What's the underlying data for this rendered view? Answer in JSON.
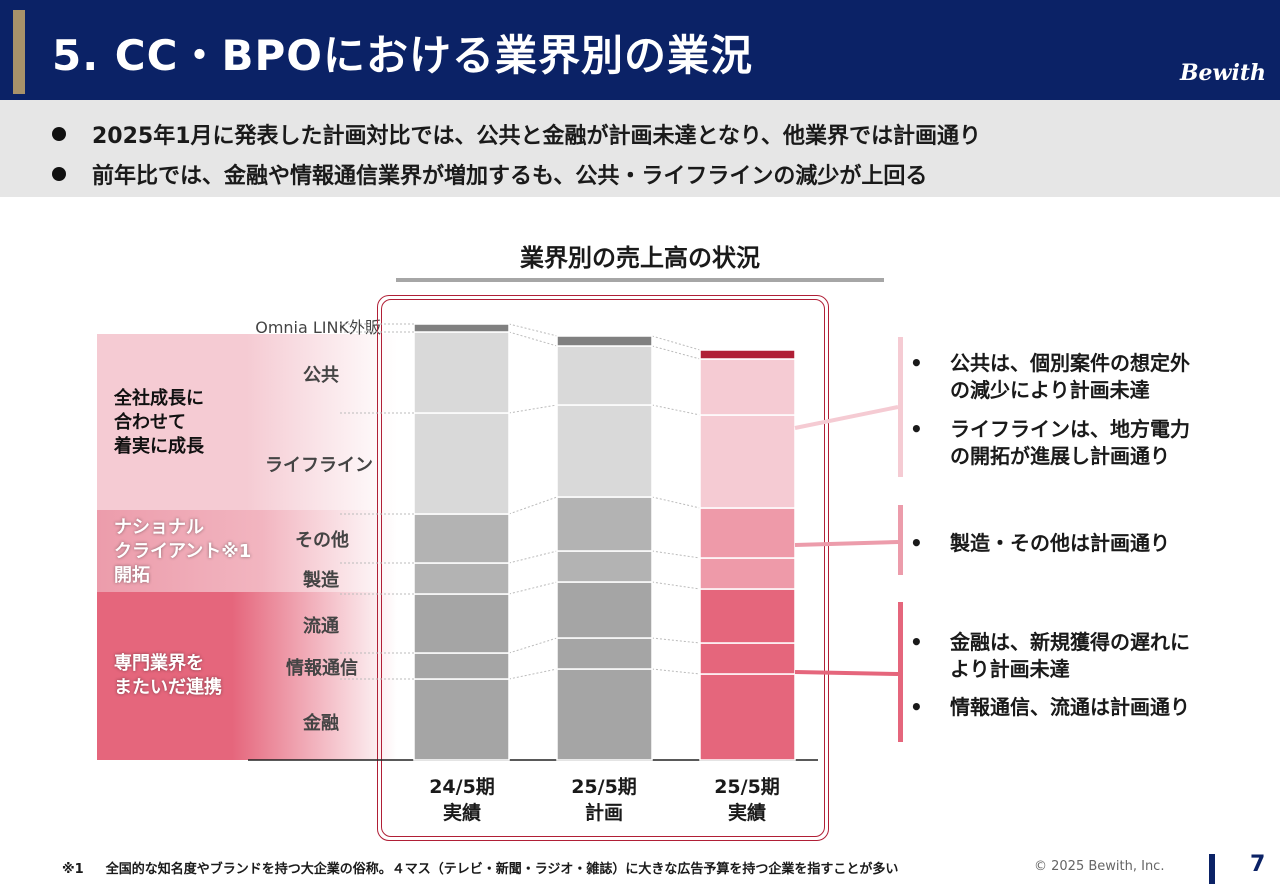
{
  "header": {
    "title": "5. CC・BPOにおける業界別の業況",
    "logo": "Bewith"
  },
  "summary": {
    "bullets": [
      "2025年1月に発表した計画対比では、公共と金融が計画未達となり、他業界では計画通り",
      "前年比では、金融や情報通信業界が増加するも、公共・ライフラインの減少が上回る"
    ]
  },
  "groups": [
    {
      "label": "全社成長に\n合わせて\n着実に成長"
    },
    {
      "label": "ナショナル\nクライアント※1\n開拓"
    },
    {
      "label": "専門業界を\nまたいだ連携"
    }
  ],
  "notes": [
    {
      "bullet": "•",
      "text": "公共は、個別案件の想定外\nの減少により計画未達"
    },
    {
      "bullet": "•",
      "text": "ライフラインは、地方電力\nの開拓が進展し計画通り"
    },
    {
      "bullet": "•",
      "text": "製造・その他は計画通り"
    },
    {
      "bullet": "•",
      "text": "金融は、新規獲得の遅れに\nより計画未達"
    },
    {
      "bullet": "•",
      "text": "情報通信、流通は計画通り"
    }
  ],
  "colors": {
    "header_bg": "#0b2266",
    "accent": "#b01f36",
    "grey_bars": [
      "#a5a5a5",
      "#a5a5a5",
      "#a5a5a5",
      "#b3b3b3",
      "#b3b3b3",
      "#d9d9d9",
      "#d9d9d9",
      "#808080"
    ],
    "actual_bars": [
      "#e5667c",
      "#e5667c",
      "#e5667c",
      "#ee9aa9",
      "#ee9aa9",
      "#f5cbd3",
      "#f5cbd3",
      "#b01f36"
    ],
    "bracket": [
      "#f5cbd3",
      "#ec9cab",
      "#e5667c"
    ]
  },
  "chart_data": {
    "type": "bar",
    "stacked": true,
    "title": "業界別の売上高の状況",
    "categories": [
      "24/5期\n実績",
      "25/5期\n計画",
      "25/5期\n実績"
    ],
    "series": [
      {
        "name": "金融",
        "values": [
          81,
          91,
          86
        ]
      },
      {
        "name": "情報通信",
        "values": [
          26,
          31,
          31
        ]
      },
      {
        "name": "流通",
        "values": [
          59,
          56,
          54
        ]
      },
      {
        "name": "製造",
        "values": [
          31,
          31,
          31
        ]
      },
      {
        "name": "その他",
        "values": [
          49,
          54,
          50
        ]
      },
      {
        "name": "ライフライン",
        "values": [
          101,
          92,
          93
        ]
      },
      {
        "name": "公共",
        "values": [
          81,
          59,
          56
        ]
      },
      {
        "name": "Omnia LINK外販",
        "values": [
          8,
          10,
          9
        ]
      }
    ],
    "yticks": "none",
    "grid": false,
    "legend": "left"
  },
  "footer": {
    "footnote_mark": "※1",
    "footnote": "全国的な知名度やブランドを持つ大企業の俗称。４マス（テレビ・新聞・ラジオ・雑誌）に大きな広告予算を持つ企業を指すことが多い",
    "copyright": "© 2025 Bewith, Inc.",
    "page": "7"
  }
}
